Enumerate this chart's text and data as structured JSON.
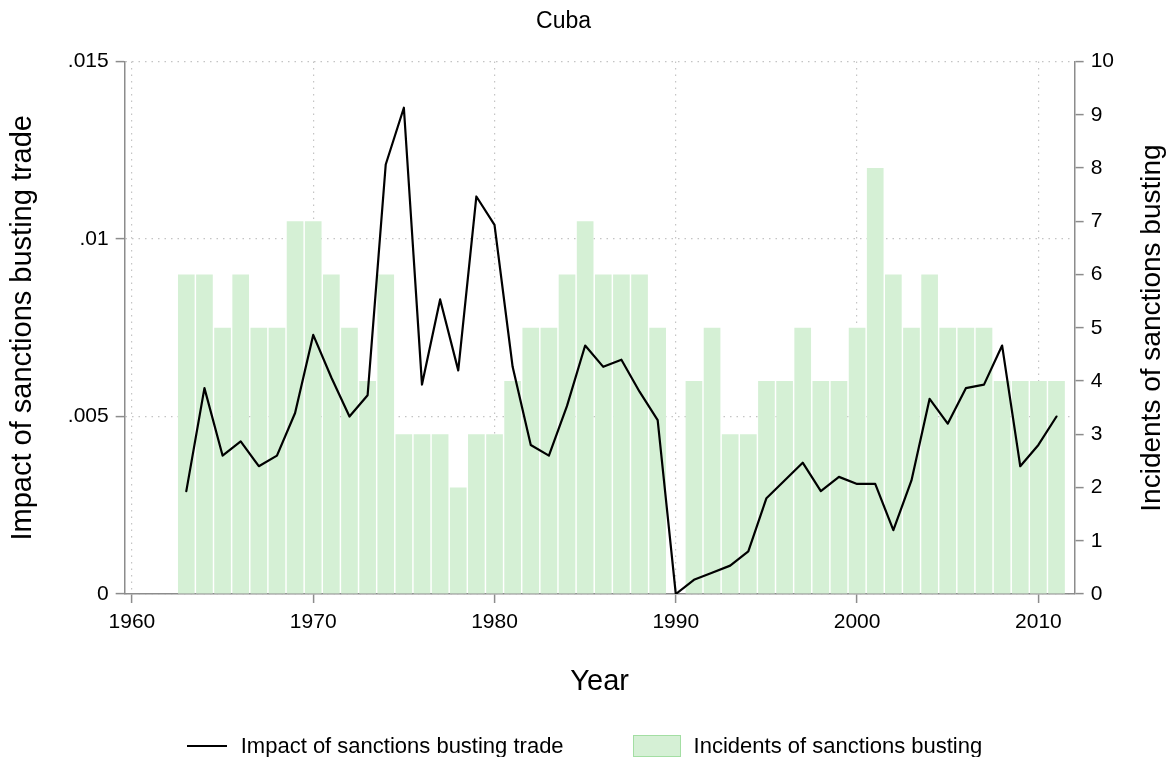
{
  "chart_data": {
    "type": "bar",
    "title": "Cuba",
    "xlabel": "Year",
    "ylabel": "Impact of sanctions busting trade",
    "y2label": "Incidents of sanctions busting",
    "x": [
      1963,
      1964,
      1965,
      1966,
      1967,
      1968,
      1969,
      1970,
      1971,
      1972,
      1973,
      1974,
      1975,
      1976,
      1977,
      1978,
      1979,
      1980,
      1981,
      1982,
      1983,
      1984,
      1985,
      1986,
      1987,
      1988,
      1989,
      1990,
      1991,
      1992,
      1993,
      1994,
      1995,
      1996,
      1997,
      1998,
      1999,
      2000,
      2001,
      2002,
      2003,
      2004,
      2005,
      2006,
      2007,
      2008,
      2009,
      2010,
      2011
    ],
    "series": [
      {
        "name": "Impact of sanctions busting trade",
        "type": "line",
        "color": "#000000",
        "values": [
          0.0029,
          0.0058,
          0.0039,
          0.0043,
          0.0036,
          0.0039,
          0.0051,
          0.0073,
          0.0061,
          0.005,
          0.0056,
          0.0121,
          0.0137,
          0.0059,
          0.0083,
          0.0063,
          0.0112,
          0.0104,
          0.0064,
          0.0042,
          0.0039,
          0.0053,
          0.007,
          0.0064,
          0.0066,
          0.0057,
          0.0049,
          0,
          0.0004,
          0.0006,
          0.0008,
          0.0012,
          0.0027,
          0.0032,
          0.0037,
          0.0029,
          0.0033,
          0.0031,
          0.0031,
          0.0018,
          0.0032,
          0.0055,
          0.0048,
          0.0058,
          0.0059,
          0.007,
          0.0036,
          0.0042,
          0.005
        ]
      },
      {
        "name": "Incidents of sanctions busting",
        "axis": "y2",
        "color": "#d5f0d5",
        "values": [
          6,
          6,
          5,
          6,
          5,
          5,
          7,
          7,
          6,
          5,
          4,
          6,
          3,
          3,
          3,
          2,
          3,
          3,
          4,
          5,
          5,
          6,
          7,
          6,
          6,
          6,
          5,
          null,
          4,
          5,
          3,
          3,
          4,
          4,
          5,
          4,
          4,
          5,
          8,
          6,
          5,
          6,
          5,
          5,
          5,
          4,
          4,
          4,
          4
        ]
      }
    ],
    "xlim": [
      1959.6,
      2012
    ],
    "xticks": [
      1960,
      1970,
      1980,
      1990,
      2000,
      2010
    ],
    "ylim": [
      0,
      0.015
    ],
    "yticks": [
      0,
      {
        "value": 0.005,
        "label": ".005"
      },
      {
        "value": 0.01,
        "label": ".01"
      },
      {
        "value": 0.015,
        "label": ".015"
      }
    ],
    "y2lim": [
      0,
      10
    ],
    "y2ticks": [
      0,
      1,
      2,
      3,
      4,
      5,
      6,
      7,
      8,
      9,
      10
    ],
    "grid": true,
    "legend": "bottom",
    "marker": "none"
  }
}
